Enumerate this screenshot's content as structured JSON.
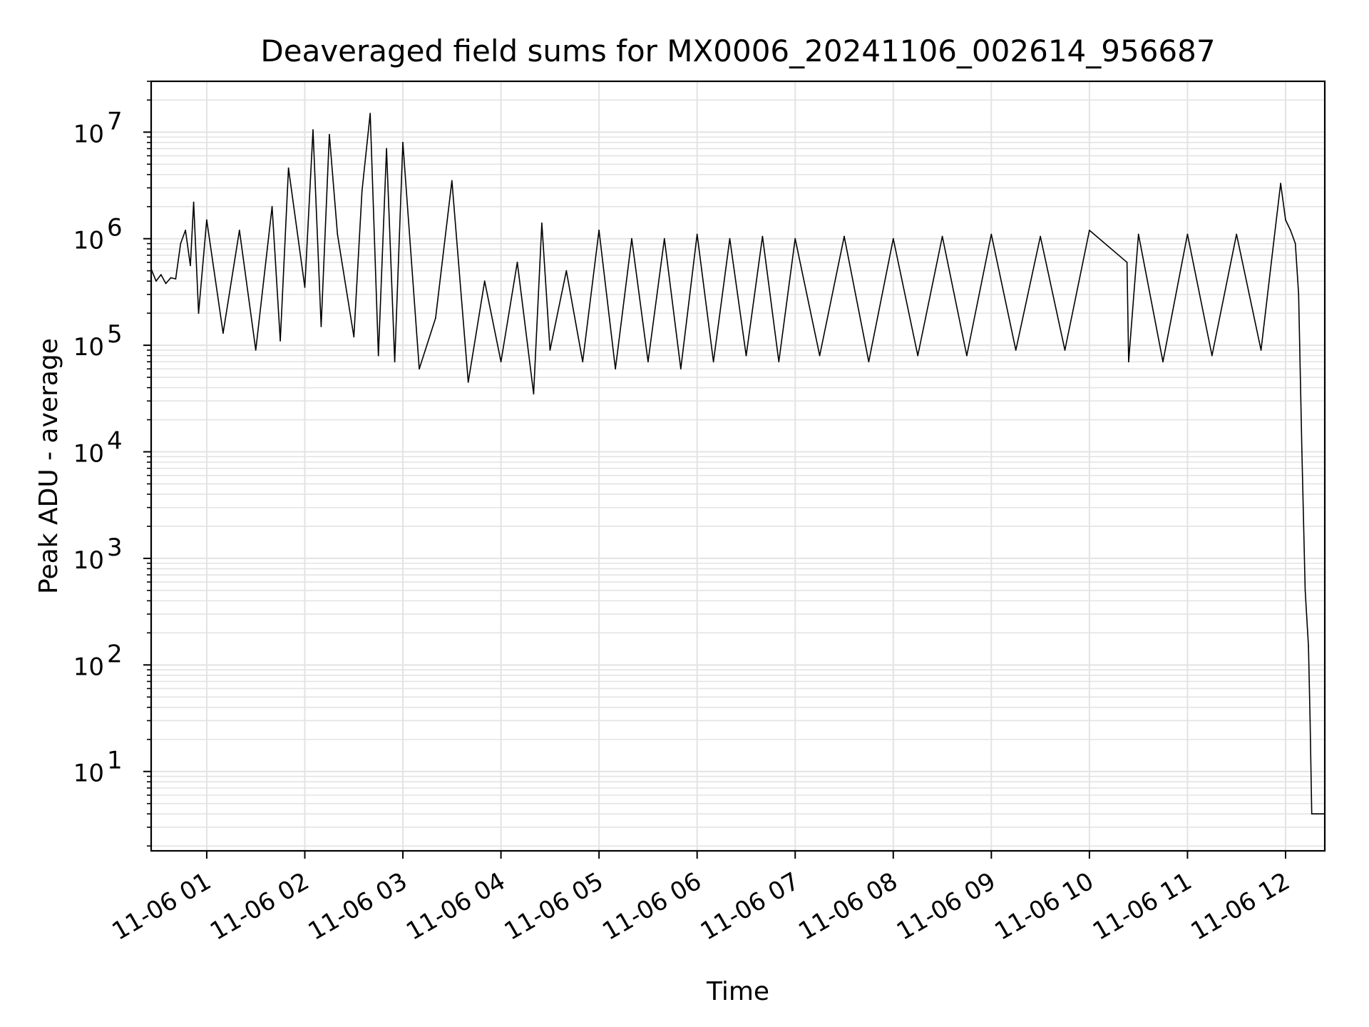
{
  "chart_data": {
    "type": "line",
    "title": "Deaveraged field sums for MX0006_20241106_002614_956687",
    "xlabel": "Time",
    "ylabel": "Peak ADU - average",
    "yscale": "log",
    "ylim": [
      1.8,
      30000000
    ],
    "xlim": [
      "2024-11-06 00:26",
      "2024-11-06 12:24"
    ],
    "grid": true,
    "line_color": "#000000",
    "grid_color": "#e3e3e3",
    "x_ticks": [
      "2024-11-06 01:00",
      "2024-11-06 02:00",
      "2024-11-06 03:00",
      "2024-11-06 04:00",
      "2024-11-06 05:00",
      "2024-11-06 06:00",
      "2024-11-06 07:00",
      "2024-11-06 08:00",
      "2024-11-06 09:00",
      "2024-11-06 10:00",
      "2024-11-06 11:00",
      "2024-11-06 12:00"
    ],
    "x_tick_labels": [
      "11-06 01",
      "11-06 02",
      "11-06 03",
      "11-06 04",
      "11-06 05",
      "11-06 06",
      "11-06 07",
      "11-06 08",
      "11-06 09",
      "11-06 10",
      "11-06 11",
      "11-06 12"
    ],
    "y_ticks": [
      10,
      100,
      1000,
      10000,
      100000,
      1000000,
      10000000
    ],
    "y_tick_exponents": [
      "1",
      "2",
      "3",
      "4",
      "5",
      "6",
      "7"
    ],
    "y_tick_base": "10",
    "series": [
      {
        "x": [
          "2024-11-06 00:26",
          "2024-11-06 00:29",
          "2024-11-06 00:32",
          "2024-11-06 00:35",
          "2024-11-06 00:38",
          "2024-11-06 00:41",
          "2024-11-06 00:44",
          "2024-11-06 00:47",
          "2024-11-06 00:50",
          "2024-11-06 00:52",
          "2024-11-06 00:55",
          "2024-11-06 01:00",
          "2024-11-06 01:10",
          "2024-11-06 01:20",
          "2024-11-06 01:30",
          "2024-11-06 01:40",
          "2024-11-06 01:45",
          "2024-11-06 01:50",
          "2024-11-06 02:00",
          "2024-11-06 02:05",
          "2024-11-06 02:10",
          "2024-11-06 02:15",
          "2024-11-06 02:20",
          "2024-11-06 02:30",
          "2024-11-06 02:35",
          "2024-11-06 02:40",
          "2024-11-06 02:45",
          "2024-11-06 02:50",
          "2024-11-06 02:55",
          "2024-11-06 03:00",
          "2024-11-06 03:10",
          "2024-11-06 03:20",
          "2024-11-06 03:30",
          "2024-11-06 03:40",
          "2024-11-06 03:50",
          "2024-11-06 04:00",
          "2024-11-06 04:10",
          "2024-11-06 04:20",
          "2024-11-06 04:25",
          "2024-11-06 04:30",
          "2024-11-06 04:40",
          "2024-11-06 04:50",
          "2024-11-06 05:00",
          "2024-11-06 05:10",
          "2024-11-06 05:20",
          "2024-11-06 05:30",
          "2024-11-06 05:40",
          "2024-11-06 05:50",
          "2024-11-06 06:00",
          "2024-11-06 06:10",
          "2024-11-06 06:20",
          "2024-11-06 06:30",
          "2024-11-06 06:40",
          "2024-11-06 06:50",
          "2024-11-06 07:00",
          "2024-11-06 07:15",
          "2024-11-06 07:30",
          "2024-11-06 07:45",
          "2024-11-06 08:00",
          "2024-11-06 08:15",
          "2024-11-06 08:30",
          "2024-11-06 08:45",
          "2024-11-06 09:00",
          "2024-11-06 09:15",
          "2024-11-06 09:30",
          "2024-11-06 09:45",
          "2024-11-06 10:00",
          "2024-11-06 10:23",
          "2024-11-06 10:24",
          "2024-11-06 10:30",
          "2024-11-06 10:45",
          "2024-11-06 11:00",
          "2024-11-06 11:15",
          "2024-11-06 11:30",
          "2024-11-06 11:45",
          "2024-11-06 11:53",
          "2024-11-06 11:57",
          "2024-11-06 12:00",
          "2024-11-06 12:03",
          "2024-11-06 12:06",
          "2024-11-06 12:08",
          "2024-11-06 12:10",
          "2024-11-06 12:12",
          "2024-11-06 12:14",
          "2024-11-06 12:15",
          "2024-11-06 12:16",
          "2024-11-06 12:17",
          "2024-11-06 12:18",
          "2024-11-06 12:19",
          "2024-11-06 12:20",
          "2024-11-06 12:22",
          "2024-11-06 12:24"
        ],
        "values": [
          520000,
          400000,
          460000,
          380000,
          430000,
          420000,
          900000,
          1200000,
          560000,
          2200000,
          200000,
          1500000,
          130000,
          1200000,
          90000,
          2000000,
          110000,
          4600000,
          350000,
          10500000,
          150000,
          9500000,
          1100000,
          120000,
          2800000,
          15000000,
          80000,
          7000000,
          70000,
          8000000,
          60000,
          180000,
          3500000,
          45000,
          400000,
          70000,
          600000,
          35000,
          1400000,
          90000,
          500000,
          70000,
          1200000,
          60000,
          1000000,
          70000,
          1000000,
          60000,
          1100000,
          70000,
          1000000,
          80000,
          1050000,
          70000,
          1000000,
          80000,
          1050000,
          70000,
          1000000,
          80000,
          1050000,
          80000,
          1100000,
          90000,
          1050000,
          90000,
          1200000,
          600000,
          70000,
          1100000,
          70000,
          1100000,
          80000,
          1100000,
          90000,
          1000000,
          3300000,
          1500000,
          1200000,
          900000,
          300000,
          10000,
          500,
          150,
          30,
          4,
          4,
          4,
          4,
          4,
          4,
          4
        ]
      }
    ]
  }
}
